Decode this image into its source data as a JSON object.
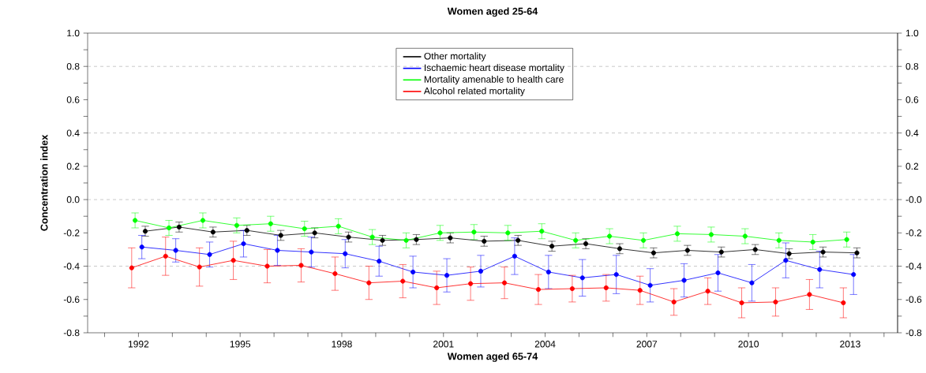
{
  "chart_data": {
    "type": "line",
    "title": "Women aged 25-64",
    "xlabel": "Women aged 65-74",
    "ylabel": "Concentration index",
    "xlim": [
      1990.5,
      2014.4
    ],
    "xticks": [
      {
        "value": 1991,
        "label": null
      },
      1992,
      {
        "value": 1993,
        "label": null
      },
      {
        "value": 1994,
        "label": null
      },
      1995,
      {
        "value": 1996,
        "label": null
      },
      {
        "value": 1997,
        "label": null
      },
      1998,
      {
        "value": 1999,
        "label": null
      },
      {
        "value": 2000,
        "label": null
      },
      2001,
      {
        "value": 2002,
        "label": null
      },
      {
        "value": 2003,
        "label": null
      },
      2004,
      {
        "value": 2005,
        "label": null
      },
      {
        "value": 2006,
        "label": null
      },
      2007,
      {
        "value": 2008,
        "label": null
      },
      {
        "value": 2009,
        "label": null
      },
      2010,
      {
        "value": 2011,
        "label": null
      },
      {
        "value": 2012,
        "label": null
      },
      2013,
      {
        "value": 2014,
        "label": null
      }
    ],
    "ylim": [
      -0.8,
      1.0
    ],
    "yticks": [
      {
        "value": -0.8,
        "label": "-0.8"
      },
      {
        "value": -0.7,
        "label": null
      },
      {
        "value": -0.6,
        "label": "-0.6"
      },
      {
        "value": -0.5,
        "label": null
      },
      {
        "value": -0.4,
        "label": "-0.4"
      },
      {
        "value": -0.3,
        "label": null
      },
      {
        "value": -0.2,
        "label": "-0.2"
      },
      {
        "value": -0.1,
        "label": null
      },
      {
        "value": 0,
        "label": "0.0"
      },
      {
        "value": 0.1,
        "label": null
      },
      {
        "value": 0.2,
        "label": "0.2"
      },
      {
        "value": 0.3,
        "label": null
      },
      {
        "value": 0.4,
        "label": "0.4"
      },
      {
        "value": 0.5,
        "label": null
      },
      {
        "value": 0.6,
        "label": "0.6"
      },
      {
        "value": 0.7,
        "label": null
      },
      {
        "value": 0.8,
        "label": "0.8"
      },
      {
        "value": 0.9,
        "label": null
      },
      {
        "value": 1.0,
        "label": "1.0"
      }
    ],
    "y2lim": [
      -0.8,
      1.0
    ],
    "y2ticks": [
      {
        "value": -0.8,
        "label": "-0.8"
      },
      {
        "value": -0.7,
        "label": null
      },
      {
        "value": -0.6,
        "label": "-0.6"
      },
      {
        "value": -0.5,
        "label": null
      },
      {
        "value": -0.4,
        "label": "-0.4"
      },
      {
        "value": -0.3,
        "label": null
      },
      {
        "value": -0.2,
        "label": "-0.2"
      },
      {
        "value": -0.1,
        "label": null
      },
      {
        "value": 0,
        "label": "-0.0"
      },
      {
        "value": 0.1,
        "label": null
      },
      {
        "value": 0.2,
        "label": "0.2"
      },
      {
        "value": 0.3,
        "label": null
      },
      {
        "value": 0.4,
        "label": "0.4"
      },
      {
        "value": 0.5,
        "label": null
      },
      {
        "value": 0.6,
        "label": "0.6"
      },
      {
        "value": 0.7,
        "label": null
      },
      {
        "value": 0.8,
        "label": "0.8"
      },
      {
        "value": 0.9,
        "label": null
      },
      {
        "value": 1.0,
        "label": "1.0"
      }
    ],
    "ref_lines": [
      {
        "axis": "y",
        "value": 0.8,
        "color": "#999999",
        "line_style": "dashed"
      },
      {
        "axis": "y",
        "value": 0.4,
        "color": "#999999",
        "line_style": "dashed"
      },
      {
        "axis": "y",
        "value": 0,
        "color": "#999999",
        "line_style": "dashed"
      },
      {
        "axis": "y",
        "value": -0.4,
        "color": "#999999",
        "line_style": "dashed"
      }
    ],
    "legend": "top",
    "marker": "circle",
    "line_style": "solid",
    "series": [
      {
        "name": "Other mortality",
        "color": "#000000",
        "x": [
          1992.2,
          1993.2,
          1994.2,
          1995.2,
          1996.2,
          1997.2,
          1998.2,
          1999.2,
          2000.2,
          2001.2,
          2002.2,
          2003.2,
          2004.2,
          2005.2,
          2006.2,
          2007.2,
          2008.2,
          2009.2,
          2010.2,
          2011.2,
          2012.2,
          2013.2
        ],
        "values": [
          -0.19,
          -0.165,
          -0.195,
          -0.185,
          -0.215,
          -0.2,
          -0.225,
          -0.245,
          -0.24,
          -0.23,
          -0.25,
          -0.245,
          -0.28,
          -0.265,
          -0.295,
          -0.32,
          -0.305,
          -0.315,
          -0.3,
          -0.325,
          -0.315,
          -0.32
        ],
        "errors": [
          0.03,
          0.03,
          0.03,
          0.03,
          0.03,
          0.03,
          0.03,
          0.03,
          0.03,
          0.03,
          0.03,
          0.03,
          0.03,
          0.03,
          0.03,
          0.03,
          0.03,
          0.03,
          0.03,
          0.03,
          0.03,
          0.03
        ]
      },
      {
        "name": "Ischaemic heart disease mortality",
        "color": "#0000ff",
        "x": [
          1992.1,
          1993.1,
          1994.1,
          1995.1,
          1996.1,
          1997.1,
          1998.1,
          1999.1,
          2000.1,
          2001.1,
          2002.1,
          2003.1,
          2004.1,
          2005.1,
          2006.1,
          2007.1,
          2008.1,
          2009.1,
          2010.1,
          2011.1,
          2012.1,
          2013.1
        ],
        "values": [
          -0.285,
          -0.305,
          -0.33,
          -0.265,
          -0.305,
          -0.315,
          -0.325,
          -0.37,
          -0.435,
          -0.455,
          -0.43,
          -0.34,
          -0.435,
          -0.47,
          -0.45,
          -0.515,
          -0.485,
          -0.44,
          -0.5,
          -0.365,
          -0.42,
          -0.45
        ],
        "errors": [
          0.07,
          0.07,
          0.075,
          0.08,
          0.09,
          0.09,
          0.085,
          0.09,
          0.095,
          0.1,
          0.095,
          0.11,
          0.1,
          0.11,
          0.115,
          0.1,
          0.1,
          0.11,
          0.11,
          0.105,
          0.11,
          0.12
        ]
      },
      {
        "name": "Mortality amenable to health care",
        "color": "#00ff00",
        "x": [
          1991.9,
          1992.9,
          1993.9,
          1994.9,
          1995.9,
          1996.9,
          1997.9,
          1998.9,
          1999.9,
          2000.9,
          2001.9,
          2002.9,
          2003.9,
          2004.9,
          2005.9,
          2006.9,
          2007.9,
          2008.9,
          2009.9,
          2010.9,
          2011.9,
          2012.9
        ],
        "values": [
          -0.125,
          -0.17,
          -0.125,
          -0.155,
          -0.145,
          -0.175,
          -0.16,
          -0.225,
          -0.245,
          -0.2,
          -0.195,
          -0.2,
          -0.19,
          -0.245,
          -0.22,
          -0.245,
          -0.205,
          -0.21,
          -0.22,
          -0.245,
          -0.255,
          -0.24
        ],
        "errors": [
          0.045,
          0.045,
          0.045,
          0.045,
          0.045,
          0.045,
          0.045,
          0.045,
          0.045,
          0.045,
          0.045,
          0.045,
          0.045,
          0.045,
          0.045,
          0.045,
          0.045,
          0.045,
          0.045,
          0.045,
          0.045,
          0.045
        ]
      },
      {
        "name": "Alcohol related mortality",
        "color": "#ff0000",
        "x": [
          1991.8,
          1992.8,
          1993.8,
          1994.8,
          1995.8,
          1996.8,
          1997.8,
          1998.8,
          1999.8,
          2000.8,
          2001.8,
          2002.8,
          2003.8,
          2004.8,
          2005.8,
          2006.8,
          2007.8,
          2008.8,
          2009.8,
          2010.8,
          2011.8,
          2012.8
        ],
        "values": [
          -0.41,
          -0.34,
          -0.405,
          -0.365,
          -0.4,
          -0.395,
          -0.445,
          -0.5,
          -0.49,
          -0.53,
          -0.505,
          -0.5,
          -0.54,
          -0.535,
          -0.53,
          -0.545,
          -0.615,
          -0.55,
          -0.62,
          -0.615,
          -0.57,
          -0.62
        ],
        "errors": [
          0.12,
          0.115,
          0.115,
          0.115,
          0.1,
          0.1,
          0.1,
          0.1,
          0.1,
          0.1,
          0.1,
          0.095,
          0.09,
          0.08,
          0.08,
          0.085,
          0.08,
          0.08,
          0.09,
          0.085,
          0.09,
          0.09
        ]
      }
    ]
  }
}
